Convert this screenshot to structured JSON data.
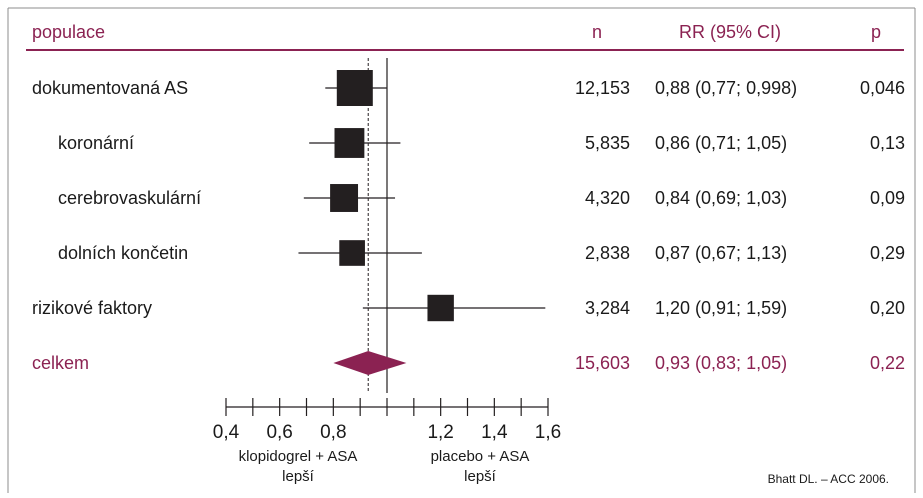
{
  "colors": {
    "accent": "#8b2252",
    "text": "#1a1a1a",
    "marker": "#231f20",
    "frame": "#8c8c8c"
  },
  "header": {
    "population": "populace",
    "n": "n",
    "rr": "RR (95% CI)",
    "p": "p"
  },
  "xaxis": {
    "ticks": [
      "0,4",
      "0,6",
      "0,8",
      "1,2",
      "1,4",
      "1,6"
    ],
    "left_label": "klopidogrel + ASA",
    "left_label_2": "lepší",
    "right_label": "placebo + ASA",
    "right_label_2": "lepší"
  },
  "source": "Bhatt DL. – ACC 2006.",
  "chart_data": {
    "type": "forest",
    "x_scale": "ratio",
    "xlim": [
      0.4,
      1.6
    ],
    "x_ticks": [
      0.4,
      0.5,
      0.6,
      0.7,
      0.8,
      0.9,
      1.0,
      1.1,
      1.2,
      1.3,
      1.4,
      1.5,
      1.6
    ],
    "null_line": 1.0,
    "overall_line": 0.93,
    "rows": [
      {
        "label": "dokumentovaná AS",
        "indent": false,
        "n": "12,153",
        "rr_text": "0,88 (0,77; 0,998)",
        "p": "0,046",
        "rr": 0.88,
        "ci": [
          0.77,
          0.998
        ],
        "weight": 12153
      },
      {
        "label": "koronární",
        "indent": true,
        "n": "5,835",
        "rr_text": "0,86 (0,71; 1,05)",
        "p": "0,13",
        "rr": 0.86,
        "ci": [
          0.71,
          1.05
        ],
        "weight": 5835
      },
      {
        "label": "cerebrovaskulární",
        "indent": true,
        "n": "4,320",
        "rr_text": "0,84 (0,69; 1,03)",
        "p": "0,09",
        "rr": 0.84,
        "ci": [
          0.69,
          1.03
        ],
        "weight": 4320
      },
      {
        "label": "dolních končetin",
        "indent": true,
        "n": "2,838",
        "rr_text": "0,87 (0,67; 1,13)",
        "p": "0,29",
        "rr": 0.87,
        "ci": [
          0.67,
          1.13
        ],
        "weight": 2838
      },
      {
        "label": "rizikové faktory",
        "indent": false,
        "n": "3,284",
        "rr_text": "1,20 (0,91; 1,59)",
        "p": "0,20",
        "rr": 1.2,
        "ci": [
          0.91,
          1.59
        ],
        "weight": 3284
      }
    ],
    "overall": {
      "label": "celkem",
      "n": "15,603",
      "rr_text": "0,93 (0,83; 1,05)",
      "p": "0,22",
      "rr": 0.93,
      "ci": [
        0.83,
        1.05
      ]
    }
  }
}
